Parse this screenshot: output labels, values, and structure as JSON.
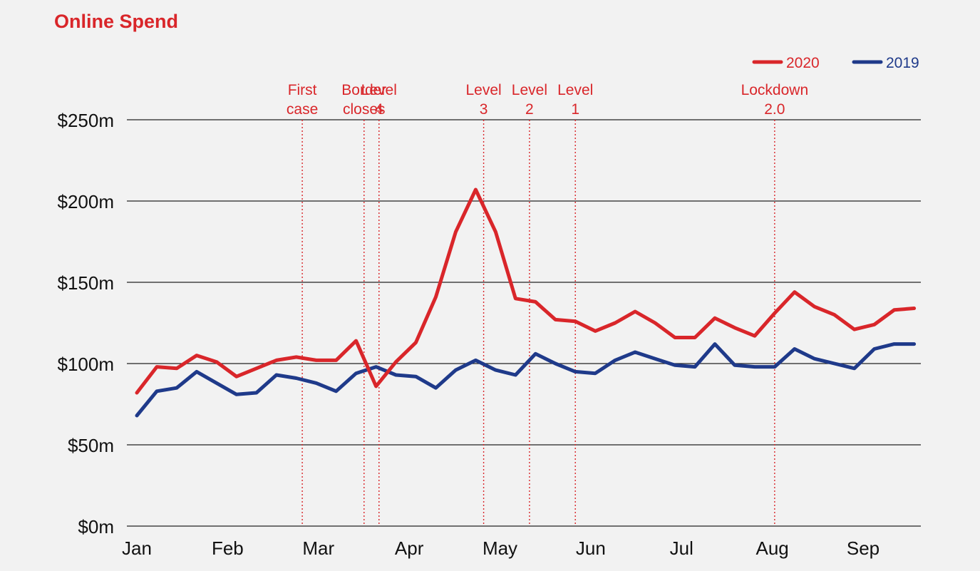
{
  "chart_data": {
    "type": "line",
    "title": "Online Spend",
    "xlabel": "",
    "ylabel": "",
    "x_ticks": [
      "Jan",
      "Feb",
      "Mar",
      "Apr",
      "May",
      "Jun",
      "Jul",
      "Aug",
      "Sep"
    ],
    "y_ticks": [
      "$0m",
      "$50m",
      "$100m",
      "$150m",
      "$200m",
      "$250m"
    ],
    "y_tick_values": [
      0,
      50,
      100,
      150,
      200,
      250
    ],
    "ylim": [
      0,
      250
    ],
    "grid": true,
    "legend_position": "top-right",
    "x_unit": "week of year",
    "xlim": [
      1,
      40.3
    ],
    "series": [
      {
        "name": "2020",
        "color": "#d9262a",
        "x": [
          1,
          2,
          3,
          4,
          5,
          6,
          7,
          8,
          9,
          10,
          11,
          12,
          13,
          14,
          15,
          16,
          17,
          18,
          19,
          20,
          21,
          22,
          23,
          24,
          25,
          26,
          27,
          28,
          29,
          30,
          31,
          32,
          33,
          34,
          35,
          36,
          37,
          38,
          39,
          40
        ],
        "values": [
          82,
          98,
          97,
          105,
          101,
          92,
          97,
          102,
          104,
          102,
          102,
          114,
          86,
          101,
          113,
          141,
          181,
          207,
          181,
          140,
          138,
          127,
          126,
          120,
          125,
          132,
          125,
          116,
          116,
          128,
          122,
          117,
          131,
          144,
          135,
          130,
          121,
          124,
          133,
          134
        ]
      },
      {
        "name": "2019",
        "color": "#1f3a8a",
        "x": [
          1,
          2,
          3,
          4,
          5,
          6,
          7,
          8,
          9,
          10,
          11,
          12,
          13,
          14,
          15,
          16,
          17,
          18,
          19,
          20,
          21,
          22,
          23,
          24,
          25,
          26,
          27,
          28,
          29,
          30,
          31,
          32,
          33,
          34,
          35,
          36,
          37,
          38,
          39,
          40
        ],
        "values": [
          68,
          83,
          85,
          95,
          88,
          81,
          82,
          93,
          91,
          88,
          83,
          94,
          98,
          93,
          92,
          85,
          96,
          102,
          96,
          93,
          106,
          100,
          95,
          94,
          102,
          107,
          103,
          99,
          98,
          112,
          99,
          98,
          98,
          109,
          103,
          100,
          97,
          109,
          112,
          112
        ]
      }
    ],
    "annotations": [
      {
        "label_lines": [
          "First",
          "case"
        ],
        "x": 9.3
      },
      {
        "label_lines": [
          "Border",
          "closes"
        ],
        "x": 12.4
      },
      {
        "label_lines": [
          "Level",
          "4"
        ],
        "x": 13.15
      },
      {
        "label_lines": [
          "Level",
          "3"
        ],
        "x": 18.4
      },
      {
        "label_lines": [
          "Level",
          "2"
        ],
        "x": 20.7
      },
      {
        "label_lines": [
          "Level",
          "1"
        ],
        "x": 23.0
      },
      {
        "label_lines": [
          "Lockdown",
          "2.0"
        ],
        "x": 33.0
      }
    ]
  }
}
